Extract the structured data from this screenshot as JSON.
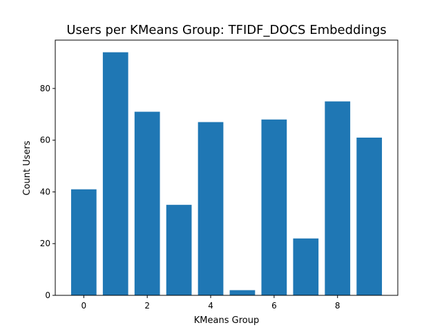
{
  "chart_data": {
    "type": "bar",
    "title": "Users per KMeans Group: TFIDF_DOCS Embeddings",
    "xlabel": "KMeans Group",
    "ylabel": "Count Users",
    "categories": [
      0,
      1,
      2,
      3,
      4,
      5,
      6,
      7,
      8,
      9
    ],
    "values": [
      41,
      94,
      71,
      35,
      67,
      2,
      68,
      22,
      75,
      61
    ],
    "xlim": [
      -0.9,
      9.9
    ],
    "ylim": [
      0,
      98.7
    ],
    "xticks": [
      0,
      2,
      4,
      6,
      8
    ],
    "yticks": [
      0,
      20,
      40,
      60,
      80
    ],
    "bar_color": "#1f77b4",
    "grid": false,
    "legend": "none"
  }
}
